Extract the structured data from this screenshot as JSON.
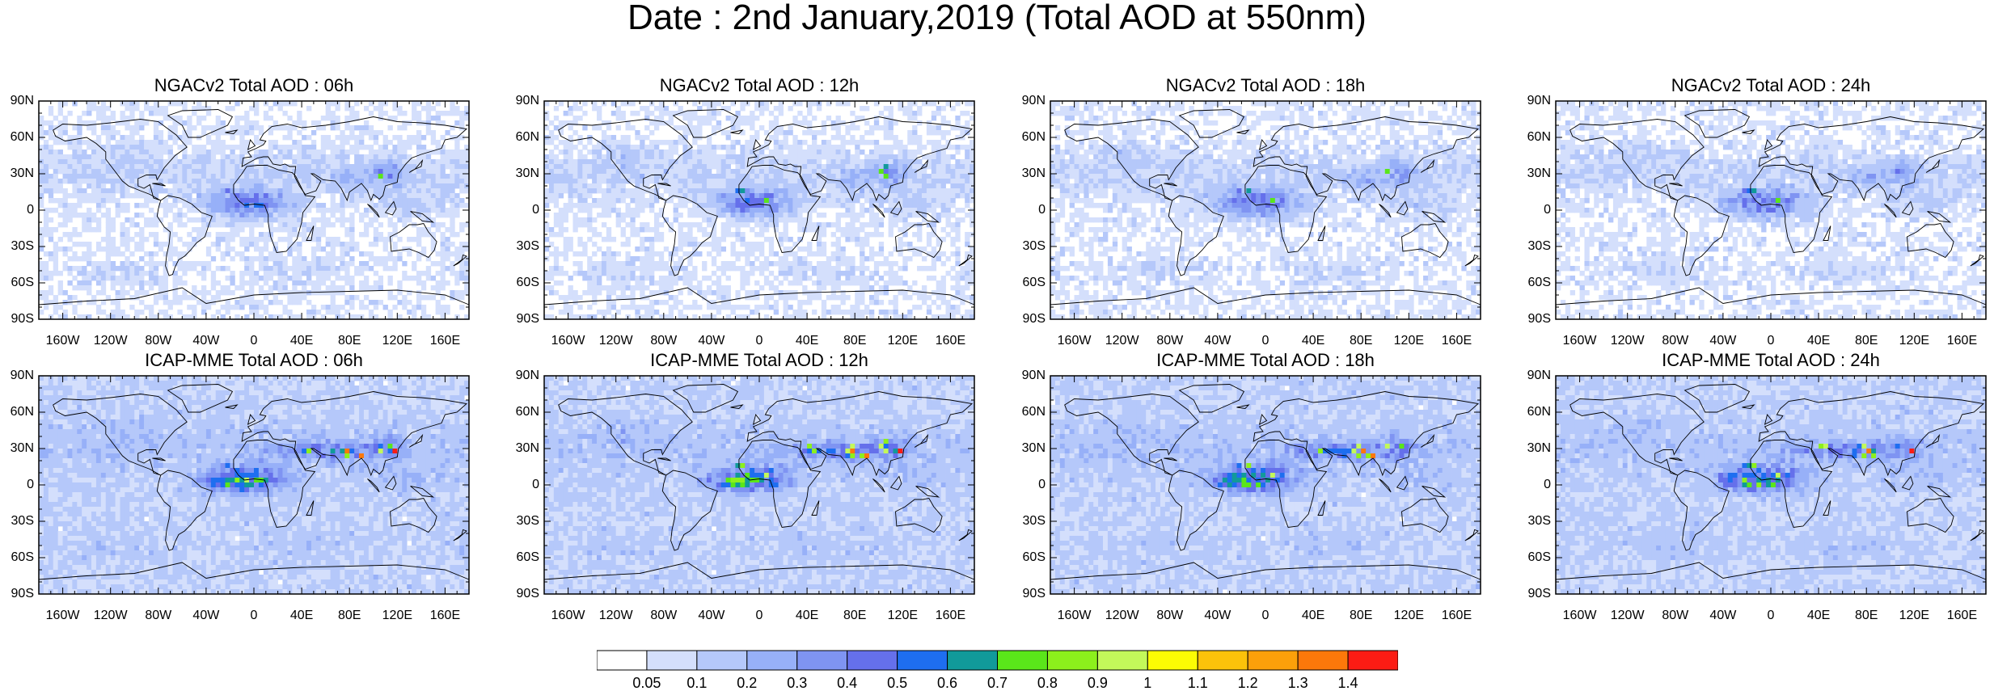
{
  "figure": {
    "title": "Date : 2nd January,2019 (Total AOD at 550nm)"
  },
  "chart_data": {
    "type": "heatmap",
    "variable": "Total AOD at 550nm",
    "map_projection": "cylindrical equidistant",
    "lat_ticks": [
      "90N",
      "60N",
      "30N",
      "0",
      "30S",
      "60S",
      "90S"
    ],
    "lon_ticks": [
      "160W",
      "120W",
      "80W",
      "40W",
      "0",
      "40E",
      "80E",
      "120E",
      "160E"
    ],
    "panels": [
      {
        "title": "NGACv2 Total AOD : 06h",
        "model": "NGACv2",
        "hour": "06h"
      },
      {
        "title": "NGACv2 Total AOD : 12h",
        "model": "NGACv2",
        "hour": "12h"
      },
      {
        "title": "NGACv2 Total AOD : 18h",
        "model": "NGACv2",
        "hour": "18h"
      },
      {
        "title": "NGACv2 Total AOD : 24h",
        "model": "NGACv2",
        "hour": "24h"
      },
      {
        "title": "ICAP-MME Total AOD : 06h",
        "model": "ICAP-MME",
        "hour": "06h"
      },
      {
        "title": "ICAP-MME Total AOD : 12h",
        "model": "ICAP-MME",
        "hour": "12h"
      },
      {
        "title": "ICAP-MME Total AOD : 18h",
        "model": "ICAP-MME",
        "hour": "18h"
      },
      {
        "title": "ICAP-MME Total AOD : 24h",
        "model": "ICAP-MME",
        "hour": "24h"
      }
    ],
    "colorbar": {
      "labels": [
        "0.05",
        "0.1",
        "0.2",
        "0.3",
        "0.4",
        "0.5",
        "0.6",
        "0.7",
        "0.8",
        "0.9",
        "1",
        "1.1",
        "1.2",
        "1.3",
        "1.4"
      ],
      "colors": [
        "#ffffff",
        "#d4dffc",
        "#b5c8fa",
        "#97b0f8",
        "#7f94f2",
        "#6570eb",
        "#1e6ef0",
        "#119a9a",
        "#5ae61a",
        "#8cf01c",
        "#c3f85a",
        "#fcfc04",
        "#fcc20a",
        "#fca00a",
        "#fc780a",
        "#fc1c14"
      ]
    }
  }
}
